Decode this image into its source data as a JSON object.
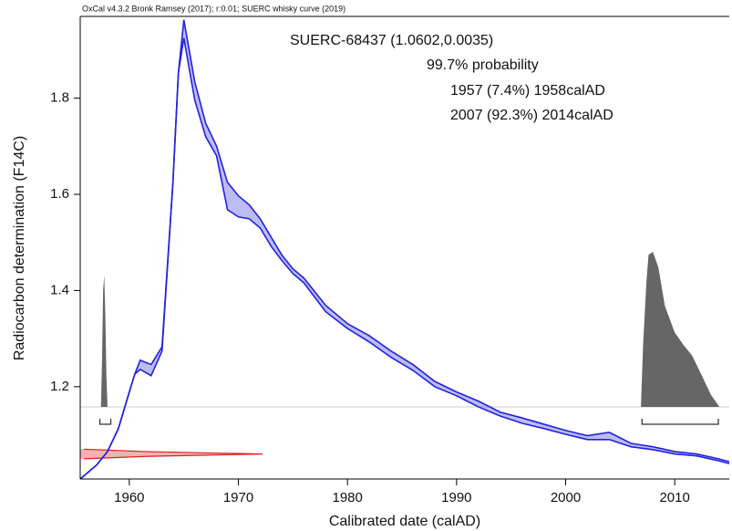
{
  "chart_data": {
    "type": "calibration",
    "header": "OxCal v4.3.2 Bronk Ramsey (2017); r:0.01; SUERC whisky curve (2019)",
    "annotations": [
      "SUERC-68437 (1.0602,0.0035)",
      "99.7% probability",
      "1957 (7.4%) 1958calAD",
      "2007 (92.3%) 2014calAD"
    ],
    "x_label": "Calibrated date (calAD)",
    "y_label": "Radiocarbon determination (F14C)",
    "xlim": [
      1955.5,
      2015
    ],
    "ylim": [
      1.008,
      1.97
    ],
    "xticks": [
      1960,
      1970,
      1980,
      1990,
      2000,
      2010
    ],
    "yticks": [
      1.2,
      1.4,
      1.6,
      1.8
    ],
    "curve": {
      "color": "#2222dd",
      "x": [
        1955.5,
        1957,
        1958,
        1959,
        1960,
        1960.5,
        1961,
        1962,
        1963,
        1964,
        1964.5,
        1965,
        1966,
        1967,
        1968,
        1969,
        1970,
        1971,
        1972,
        1973,
        1974,
        1975,
        1976,
        1978,
        1980,
        1982,
        1984,
        1986,
        1988,
        1990,
        1992,
        1994,
        1996,
        1998,
        2000,
        2002,
        2004,
        2006,
        2008,
        2010,
        2012,
        2014,
        2015
      ],
      "upper": [
        1.008,
        1.037,
        1.065,
        1.113,
        1.189,
        1.226,
        1.255,
        1.246,
        1.283,
        1.625,
        1.853,
        1.963,
        1.834,
        1.748,
        1.7,
        1.625,
        1.597,
        1.578,
        1.549,
        1.511,
        1.473,
        1.445,
        1.426,
        1.369,
        1.331,
        1.306,
        1.274,
        1.246,
        1.211,
        1.189,
        1.17,
        1.147,
        1.135,
        1.122,
        1.109,
        1.098,
        1.105,
        1.082,
        1.075,
        1.065,
        1.06,
        1.05,
        1.044
      ],
      "lower": [
        1.008,
        1.037,
        1.065,
        1.113,
        1.189,
        1.226,
        1.236,
        1.223,
        1.274,
        1.625,
        1.853,
        1.925,
        1.796,
        1.72,
        1.68,
        1.568,
        1.553,
        1.549,
        1.53,
        1.492,
        1.462,
        1.435,
        1.416,
        1.356,
        1.321,
        1.293,
        1.261,
        1.234,
        1.2,
        1.181,
        1.158,
        1.139,
        1.124,
        1.113,
        1.101,
        1.09,
        1.09,
        1.075,
        1.069,
        1.06,
        1.056,
        1.046,
        1.04
      ]
    },
    "measurement": {
      "color": "#e02020",
      "y": [
        1.05,
        1.055,
        1.06,
        1.065,
        1.07
      ],
      "density": [
        0.02,
        0.36,
        1.0,
        0.36,
        0.02
      ]
    },
    "posterior": {
      "color": "#666666",
      "pieces": [
        {
          "x": [
            1957.4,
            1957.5,
            1957.6,
            1957.7,
            1957.8,
            1957.9,
            1958.0
          ],
          "density": [
            0,
            0.3,
            0.75,
            0.85,
            0.6,
            0.2,
            0
          ]
        },
        {
          "x": [
            2006.9,
            2007.1,
            2007.4,
            2007.6,
            2008.0,
            2008.5,
            2009.1,
            2010.0,
            2010.8,
            2011.6,
            2012.5,
            2013.3,
            2014.1
          ],
          "density": [
            0,
            0.4,
            0.8,
            0.98,
            1.0,
            0.9,
            0.65,
            0.48,
            0.4,
            0.33,
            0.2,
            0.08,
            0
          ]
        }
      ]
    },
    "ranges": [
      {
        "from": 1957.3,
        "to": 1958.3
      },
      {
        "from": 2007.0,
        "to": 2014.0
      }
    ]
  }
}
